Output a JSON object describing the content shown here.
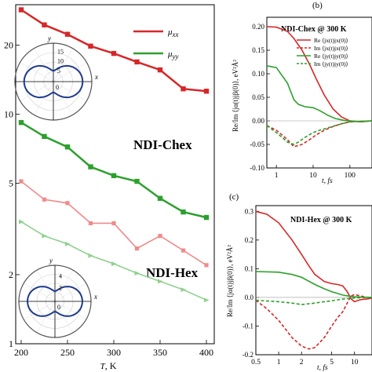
{
  "chart_data": [
    {
      "type": "line",
      "x": [
        200,
        225,
        250,
        275,
        300,
        325,
        350,
        375,
        400
      ],
      "xlabel_var": "T",
      "xlabel_unit": ", K",
      "xticks": [
        "200",
        "250",
        "300",
        "350",
        "400"
      ],
      "ylim": [
        1,
        30
      ],
      "yscale": "log",
      "yticks": [
        "1",
        "2",
        "5",
        "10",
        "20"
      ],
      "series": [
        {
          "name": "NDI-Chex μxx",
          "color": "#d62728",
          "values": [
            28.5,
            24.5,
            22.3,
            19.8,
            18.4,
            16.9,
            15.6,
            12.9,
            12.6
          ]
        },
        {
          "name": "NDI-Chex μyy",
          "color": "#2ca02c",
          "values": [
            9.2,
            8.0,
            7.2,
            5.9,
            5.4,
            5.1,
            4.3,
            3.75,
            3.55
          ]
        },
        {
          "name": "NDI-Hex μxx",
          "color": "#f08a8a",
          "values": [
            5.1,
            4.25,
            4.1,
            3.35,
            3.35,
            2.6,
            2.95,
            2.55,
            2.2
          ]
        },
        {
          "name": "NDI-Hex μyy",
          "color": "#8fd18f",
          "values": [
            3.4,
            2.95,
            2.72,
            2.42,
            2.23,
            2.03,
            1.87,
            1.72,
            1.55
          ]
        }
      ],
      "legend": [
        {
          "mu": "μ",
          "sub": "xx",
          "color": "#d62728"
        },
        {
          "mu": "μ",
          "sub": "yy",
          "color": "#2ca02c"
        }
      ],
      "annotations": [
        "NDI-Chex",
        "NDI-Hex"
      ],
      "polar_insets": [
        {
          "axis_x": "x",
          "axis_y": "y",
          "radial_ticks": [
            "5",
            "10",
            "15"
          ],
          "origin_label": "0",
          "shape": "peanut",
          "color": "#1f3b8c"
        },
        {
          "axis_x": "x",
          "axis_y": "y",
          "radial_ticks": [
            "2",
            "4"
          ],
          "origin_label": "0",
          "shape": "peanut",
          "color": "#1f3b8c"
        }
      ]
    },
    {
      "panel": "(b)",
      "title": "NDI-Chex @ 300 K",
      "type": "line",
      "xscale": "log",
      "xlabel": "t, fs",
      "ylabel": "Re/Im ⟨jα(t)jβ(0)⟩, eV²Å²",
      "xticks": [
        "1",
        "10",
        "100"
      ],
      "yticks": [
        "0.20",
        "0.15",
        "0.10",
        "0.05",
        "0.00",
        "-0.05",
        "-0.10"
      ],
      "ylim": [
        -0.1,
        0.22
      ],
      "legend": [
        "Re ⟨jx(t)jx(0)⟩",
        "Im ⟨jx(t)jx(0)⟩",
        "Re ⟨jy(t)jy(0)⟩",
        "Im ⟨jy(t)jy(0)⟩"
      ],
      "series": [
        {
          "part": "Re",
          "color": "#d62728",
          "dash": false,
          "x": [
            0.5,
            1,
            2,
            3,
            5,
            8,
            12,
            20,
            35,
            60,
            100,
            200,
            400
          ],
          "values": [
            0.2,
            0.199,
            0.19,
            0.175,
            0.15,
            0.12,
            0.09,
            0.055,
            0.025,
            0.008,
            0.0,
            -0.002,
            0.0
          ]
        },
        {
          "part": "Im",
          "color": "#d62728",
          "dash": true,
          "x": [
            0.5,
            1,
            2,
            3,
            5,
            8,
            12,
            20,
            35,
            60,
            100,
            200,
            400
          ],
          "values": [
            -0.01,
            -0.02,
            -0.04,
            -0.055,
            -0.05,
            -0.04,
            -0.03,
            -0.02,
            -0.012,
            -0.006,
            -0.002,
            -0.001,
            0.0
          ]
        },
        {
          "part": "Re",
          "color": "#2ca02c",
          "dash": false,
          "x": [
            0.5,
            1,
            2,
            3,
            4,
            6,
            10,
            15,
            25,
            40,
            70,
            100,
            200,
            400
          ],
          "values": [
            0.117,
            0.113,
            0.08,
            0.045,
            0.035,
            0.03,
            0.028,
            0.022,
            0.012,
            0.005,
            0.001,
            0.0,
            -0.002,
            0.0
          ]
        },
        {
          "part": "Im",
          "color": "#2ca02c",
          "dash": true,
          "x": [
            0.5,
            1,
            2,
            3,
            4,
            6,
            10,
            15,
            25,
            40,
            70,
            100,
            200,
            400
          ],
          "values": [
            -0.01,
            -0.025,
            -0.045,
            -0.05,
            -0.045,
            -0.035,
            -0.025,
            -0.02,
            -0.015,
            -0.01,
            -0.005,
            -0.002,
            -0.001,
            0.0
          ]
        }
      ]
    },
    {
      "panel": "(c)",
      "title": "NDI-Hex @ 300 K",
      "type": "line",
      "xscale": "log",
      "xlabel": "t, fs",
      "ylabel": "Re/Im ⟨jα(t)jβ(0)⟩, eV²Å²",
      "xticks": [
        "0.5",
        "1",
        "2",
        "5",
        "10"
      ],
      "yticks": [
        "0.3",
        "0.2",
        "0.1",
        "0.0",
        "-0.1",
        "-0.2"
      ],
      "ylim": [
        -0.2,
        0.32
      ],
      "series": [
        {
          "part": "Re",
          "color": "#d62728",
          "dash": false,
          "x": [
            0.5,
            0.7,
            1,
            1.5,
            2,
            2.5,
            3,
            4,
            5,
            6,
            7,
            8,
            9,
            10,
            12,
            15,
            20
          ],
          "values": [
            0.3,
            0.29,
            0.26,
            0.2,
            0.15,
            0.11,
            0.08,
            0.055,
            0.048,
            0.045,
            0.04,
            0.02,
            -0.005,
            -0.015,
            -0.008,
            -0.005,
            -0.002
          ]
        },
        {
          "part": "Im",
          "color": "#d62728",
          "dash": true,
          "x": [
            0.5,
            0.7,
            1,
            1.5,
            2,
            2.5,
            3,
            4,
            5,
            6,
            7,
            8,
            9,
            10,
            12,
            15,
            20
          ],
          "values": [
            -0.01,
            -0.04,
            -0.08,
            -0.14,
            -0.17,
            -0.18,
            -0.175,
            -0.14,
            -0.1,
            -0.07,
            -0.05,
            -0.02,
            0.005,
            0.01,
            0.005,
            0.0,
            0.0
          ]
        },
        {
          "part": "Re",
          "color": "#2ca02c",
          "dash": false,
          "x": [
            0.5,
            1,
            1.5,
            2,
            3,
            4,
            5,
            7,
            10,
            15,
            20
          ],
          "values": [
            0.09,
            0.088,
            0.08,
            0.07,
            0.045,
            0.03,
            0.02,
            0.008,
            0.002,
            0.0,
            0.0
          ]
        },
        {
          "part": "Im",
          "color": "#2ca02c",
          "dash": true,
          "x": [
            0.5,
            1,
            1.5,
            2,
            3,
            4,
            5,
            7,
            10,
            15,
            20
          ],
          "values": [
            -0.01,
            -0.015,
            -0.02,
            -0.025,
            -0.02,
            -0.015,
            -0.012,
            -0.006,
            -0.002,
            0.0,
            0.0
          ]
        }
      ]
    }
  ]
}
